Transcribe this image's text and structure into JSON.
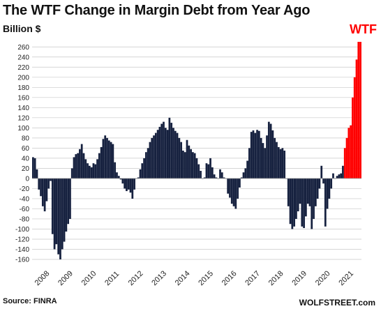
{
  "header": {
    "title": "The WTF Change in Margin Debt from Year Ago",
    "unit": "Billion $",
    "annotation": "WTF"
  },
  "footer": {
    "source": "Source: FINRA",
    "site": "WOLFSTREET.com"
  },
  "colors": {
    "bar": "#16213f",
    "highlight": "#ff0000",
    "grid": "#c8c8c8"
  },
  "chart_data": {
    "type": "bar",
    "title": "The WTF Change in Margin Debt from Year Ago",
    "ylabel": "Billion $",
    "xlabel": "",
    "ylim": [
      -160,
      270
    ],
    "yticks": [
      -160,
      -140,
      -120,
      -100,
      -80,
      -60,
      -40,
      -20,
      0,
      20,
      40,
      60,
      80,
      100,
      120,
      140,
      160,
      180,
      200,
      220,
      240,
      260
    ],
    "grid": true,
    "x_tick_labels": [
      "2008",
      "2009",
      "2010",
      "2011",
      "2012",
      "2013",
      "2014",
      "2015",
      "2016",
      "2017",
      "2018",
      "2019",
      "2020",
      "2021"
    ],
    "start_year": 2008,
    "highlight_from_index": 160,
    "values": [
      42,
      40,
      18,
      -22,
      -35,
      -55,
      -65,
      -45,
      -20,
      -5,
      -110,
      -140,
      -130,
      -150,
      -160,
      -140,
      -125,
      -105,
      -90,
      -80,
      20,
      42,
      48,
      50,
      58,
      68,
      50,
      38,
      30,
      25,
      22,
      30,
      28,
      38,
      50,
      62,
      78,
      85,
      80,
      75,
      72,
      68,
      32,
      12,
      5,
      -2,
      -10,
      -20,
      -25,
      -22,
      -28,
      -40,
      -22,
      0,
      2,
      18,
      30,
      40,
      52,
      60,
      72,
      80,
      85,
      90,
      96,
      102,
      108,
      112,
      100,
      96,
      120,
      110,
      100,
      94,
      90,
      80,
      72,
      55,
      52,
      76,
      65,
      58,
      52,
      50,
      40,
      28,
      15,
      0,
      2,
      30,
      28,
      40,
      22,
      8,
      2,
      0,
      18,
      12,
      2,
      0,
      -30,
      -38,
      -50,
      -55,
      -60,
      -40,
      -18,
      2,
      12,
      20,
      35,
      60,
      92,
      95,
      90,
      96,
      94,
      80,
      70,
      60,
      85,
      112,
      108,
      95,
      80,
      72,
      62,
      58,
      60,
      55,
      0,
      -55,
      -90,
      -100,
      -95,
      -80,
      -65,
      -50,
      -95,
      -98,
      -75,
      -50,
      -55,
      -100,
      -80,
      -55,
      -40,
      -20,
      25,
      -10,
      -95,
      -60,
      -40,
      -20,
      10,
      0,
      5,
      8,
      10,
      25,
      60,
      80,
      100,
      105,
      160,
      200,
      235,
      270,
      270
    ]
  }
}
